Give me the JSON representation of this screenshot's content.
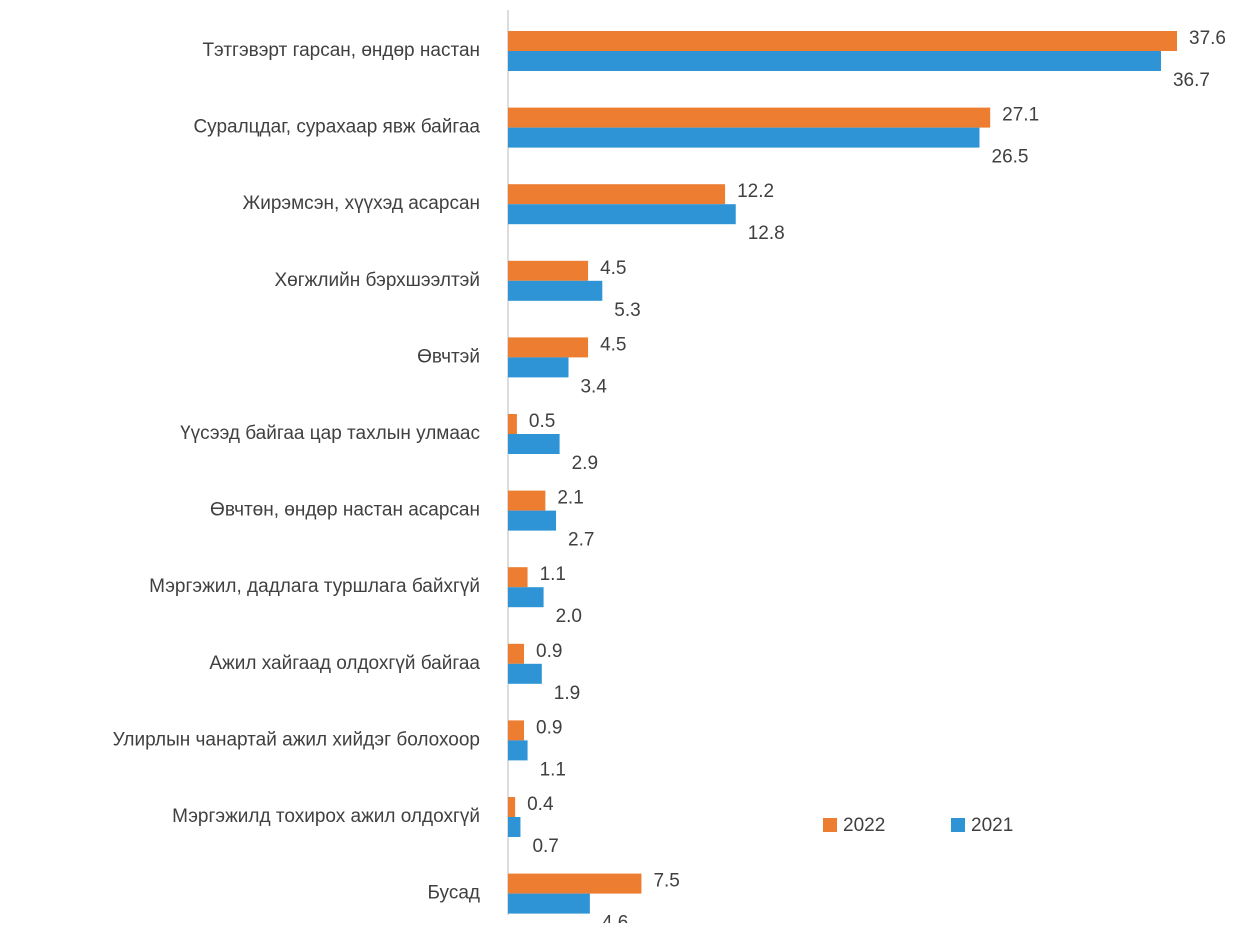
{
  "chart_data": {
    "type": "hbar",
    "categories": [
      "Тэтгэвэрт гарсан, өндөр настан",
      "Суралцдаг, сурахаар явж байгаа",
      "Жирэмсэн, хүүхэд асарсан",
      "Хөгжлийн бэрхшээлтэй",
      "Өвчтэй",
      "Үүсээд байгаа цар тахлын улмаас",
      "Өвчтөн, өндөр настан асарсан",
      "Мэргэжил, дадлага туршлага байхгүй",
      "Ажил хайгаад олдохгүй байгаа",
      "Улирлын чанартай ажил хийдэг болохоор",
      "Мэргэжилд тохирох ажил олдохгүй",
      "Бусад"
    ],
    "series": [
      {
        "name": "2022",
        "color": "#ed7d31",
        "values": [
          37.6,
          27.1,
          12.2,
          4.5,
          4.5,
          0.5,
          2.1,
          1.1,
          0.9,
          0.9,
          0.4,
          7.5
        ]
      },
      {
        "name": "2021",
        "color": "#2e94d6",
        "values": [
          36.7,
          26.5,
          12.8,
          5.3,
          3.4,
          2.9,
          2.7,
          2.0,
          1.9,
          1.1,
          0.7,
          4.6
        ],
        "value_labels": [
          "36.7",
          "26.5",
          "12.8",
          "5.3",
          "3.4",
          "2.9",
          "2.7",
          "2.0",
          "1.9",
          "1.1",
          "0.7",
          "4.6"
        ]
      }
    ],
    "xlim": [
      0,
      40
    ]
  }
}
